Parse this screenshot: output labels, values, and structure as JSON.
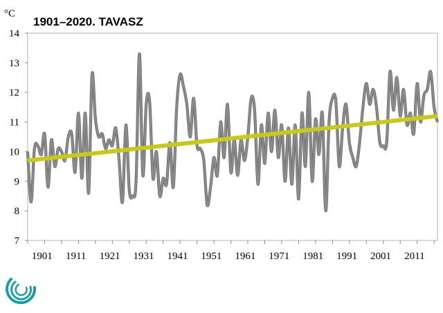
{
  "chart_data": {
    "type": "line",
    "title": "1901–2020. TAVASZ",
    "ylabel": "°C",
    "xlabel": "",
    "ylim": [
      7,
      14
    ],
    "xlim": [
      1899,
      2020
    ],
    "yticks": [
      "7",
      "8",
      "9",
      "10",
      "11",
      "12",
      "13",
      "14"
    ],
    "xticks": [
      "1901",
      "1911",
      "1921",
      "1931",
      "1941",
      "1951",
      "1961",
      "1971",
      "1981",
      "1991",
      "2001",
      "2011"
    ],
    "grid": false,
    "legend": "none",
    "series": [
      {
        "kind": "observed",
        "color": "#8c8c8c",
        "x": [
          1899,
          1900,
          1901,
          1902,
          1903,
          1904,
          1905,
          1906,
          1907,
          1908,
          1909,
          1910,
          1911,
          1912,
          1913,
          1914,
          1915,
          1916,
          1917,
          1918,
          1919,
          1920,
          1921,
          1922,
          1923,
          1924,
          1925,
          1926,
          1927,
          1928,
          1929,
          1930,
          1931,
          1932,
          1933,
          1934,
          1935,
          1936,
          1937,
          1938,
          1939,
          1940,
          1941,
          1942,
          1943,
          1944,
          1945,
          1946,
          1947,
          1948,
          1949,
          1950,
          1951,
          1952,
          1953,
          1954,
          1955,
          1956,
          1957,
          1958,
          1959,
          1960,
          1961,
          1962,
          1963,
          1964,
          1965,
          1966,
          1967,
          1968,
          1969,
          1970,
          1971,
          1972,
          1973,
          1974,
          1975,
          1976,
          1977,
          1978,
          1979,
          1980,
          1981,
          1982,
          1983,
          1984,
          1985,
          1986,
          1987,
          1988,
          1989,
          1990,
          1991,
          1992,
          1993,
          1994,
          1995,
          1996,
          1997,
          1998,
          1999,
          2000,
          2001,
          2002,
          2003,
          2004,
          2005,
          2006,
          2007,
          2008,
          2009,
          2010,
          2011,
          2012,
          2013,
          2014,
          2015,
          2016,
          2017,
          2018,
          2019,
          2020
        ],
        "values": [
          10.0,
          8.3,
          10.1,
          10.2,
          9.9,
          10.6,
          8.8,
          10.4,
          9.5,
          10.1,
          10.0,
          9.7,
          10.5,
          10.6,
          9.3,
          11.3,
          9.1,
          11.3,
          8.6,
          12.6,
          11.1,
          10.5,
          10.6,
          10.1,
          10.4,
          10.2,
          10.8,
          9.7,
          8.3,
          10.9,
          8.7,
          8.5,
          9.0,
          13.3,
          9.2,
          11.6,
          11.7,
          9.1,
          10.0,
          8.5,
          9.1,
          8.9,
          10.3,
          8.8,
          11.5,
          12.6,
          12.2,
          11.6,
          10.5,
          11.8,
          10.2,
          10.1,
          9.7,
          8.2,
          8.8,
          9.8,
          9.2,
          11.0,
          9.8,
          11.6,
          9.3,
          10.4,
          9.2,
          10.4,
          9.7,
          10.5,
          11.8,
          11.4,
          8.9,
          10.9,
          9.6,
          11.3,
          10.0,
          11.4,
          9.8,
          10.9,
          9.0,
          10.8,
          8.9,
          10.9,
          8.4,
          11.3,
          9.5,
          12.0,
          9.0,
          11.1,
          9.9,
          11.3,
          8.0,
          11.0,
          11.8,
          11.7,
          9.5,
          10.8,
          11.6,
          10.3,
          9.8,
          9.5,
          10.3,
          11.5,
          12.3,
          11.6,
          12.1,
          11.5,
          10.3,
          10.2,
          10.3,
          12.7,
          11.4,
          12.5,
          11.2,
          12.1,
          10.9,
          11.3,
          10.6,
          12.3,
          11.0,
          11.9,
          12.1,
          12.7,
          11.5,
          11.0
        ]
      },
      {
        "kind": "trend",
        "color": "#c8c81e",
        "x": [
          1899,
          2020
        ],
        "values": [
          9.7,
          11.2
        ]
      }
    ]
  },
  "logo": {
    "name": "swirl-logo",
    "color": "#1b9da0"
  }
}
